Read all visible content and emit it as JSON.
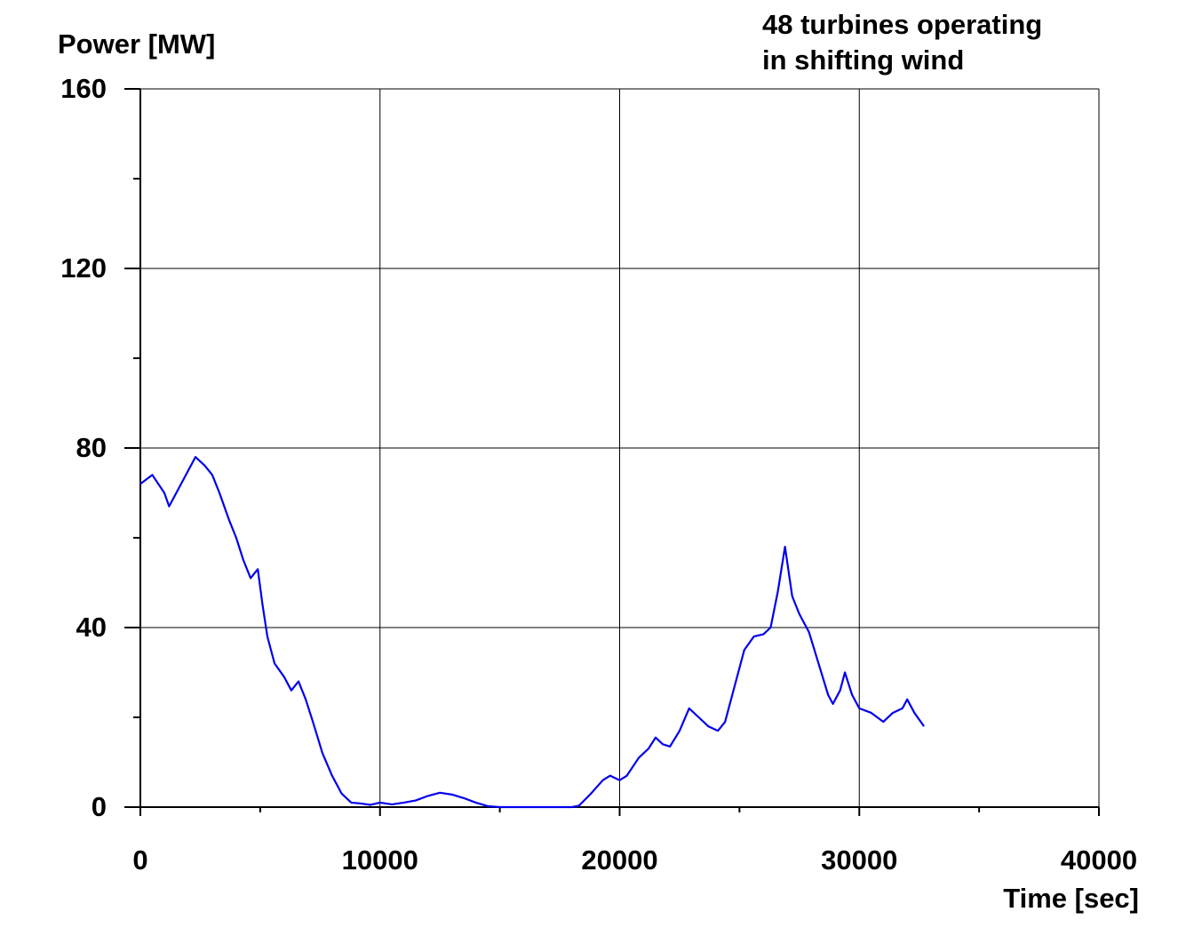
{
  "chart_data": {
    "type": "line",
    "title": "Power [MW]",
    "annotations": [
      "48 turbines operating",
      "in shifting wind"
    ],
    "x_label": "Time [sec]",
    "xlim": [
      0,
      40000
    ],
    "xticks": [
      0,
      10000,
      20000,
      30000,
      40000
    ],
    "ylim": [
      0,
      160
    ],
    "yticks": [
      0,
      40,
      80,
      120,
      160
    ],
    "grid": true,
    "series": [
      {
        "name": "Power",
        "color": "#0000ee",
        "x": [
          0,
          500,
          1000,
          1200,
          1500,
          2000,
          2300,
          2700,
          3000,
          3300,
          3700,
          4000,
          4300,
          4600,
          4900,
          5100,
          5300,
          5600,
          6000,
          6300,
          6600,
          6900,
          7200,
          7600,
          8000,
          8400,
          8800,
          9200,
          9600,
          10000,
          10500,
          11000,
          11500,
          12000,
          12500,
          13000,
          13500,
          14000,
          14500,
          15000,
          16000,
          17000,
          18000,
          18300,
          18800,
          19300,
          19600,
          20000,
          20300,
          20800,
          21200,
          21500,
          21800,
          22100,
          22500,
          22900,
          23300,
          23700,
          24100,
          24400,
          24800,
          25200,
          25600,
          26000,
          26300,
          26600,
          26900,
          27200,
          27500,
          27900,
          28300,
          28700,
          28900,
          29200,
          29400,
          29700,
          30000,
          30500,
          31000,
          31400,
          31800,
          32000,
          32300,
          32700
        ],
        "values": [
          72,
          74,
          70,
          67,
          70,
          75,
          78,
          76,
          74,
          70,
          64,
          60,
          55,
          51,
          53,
          45,
          38,
          32,
          29,
          26,
          28,
          24,
          19,
          12,
          7,
          3,
          1,
          0.8,
          0.5,
          1,
          0.6,
          1,
          1.5,
          2.5,
          3.2,
          2.8,
          2,
          1,
          0.2,
          0,
          0,
          0,
          0,
          0.3,
          3,
          6,
          7,
          6,
          7,
          11,
          13,
          15.5,
          14,
          13.5,
          17,
          22,
          20,
          18,
          17,
          19,
          27,
          35,
          38,
          38.5,
          40,
          48,
          58,
          47,
          43,
          39,
          32,
          25,
          23,
          26,
          30,
          25,
          22,
          21,
          19,
          21,
          22,
          24,
          21,
          18
        ]
      }
    ]
  }
}
